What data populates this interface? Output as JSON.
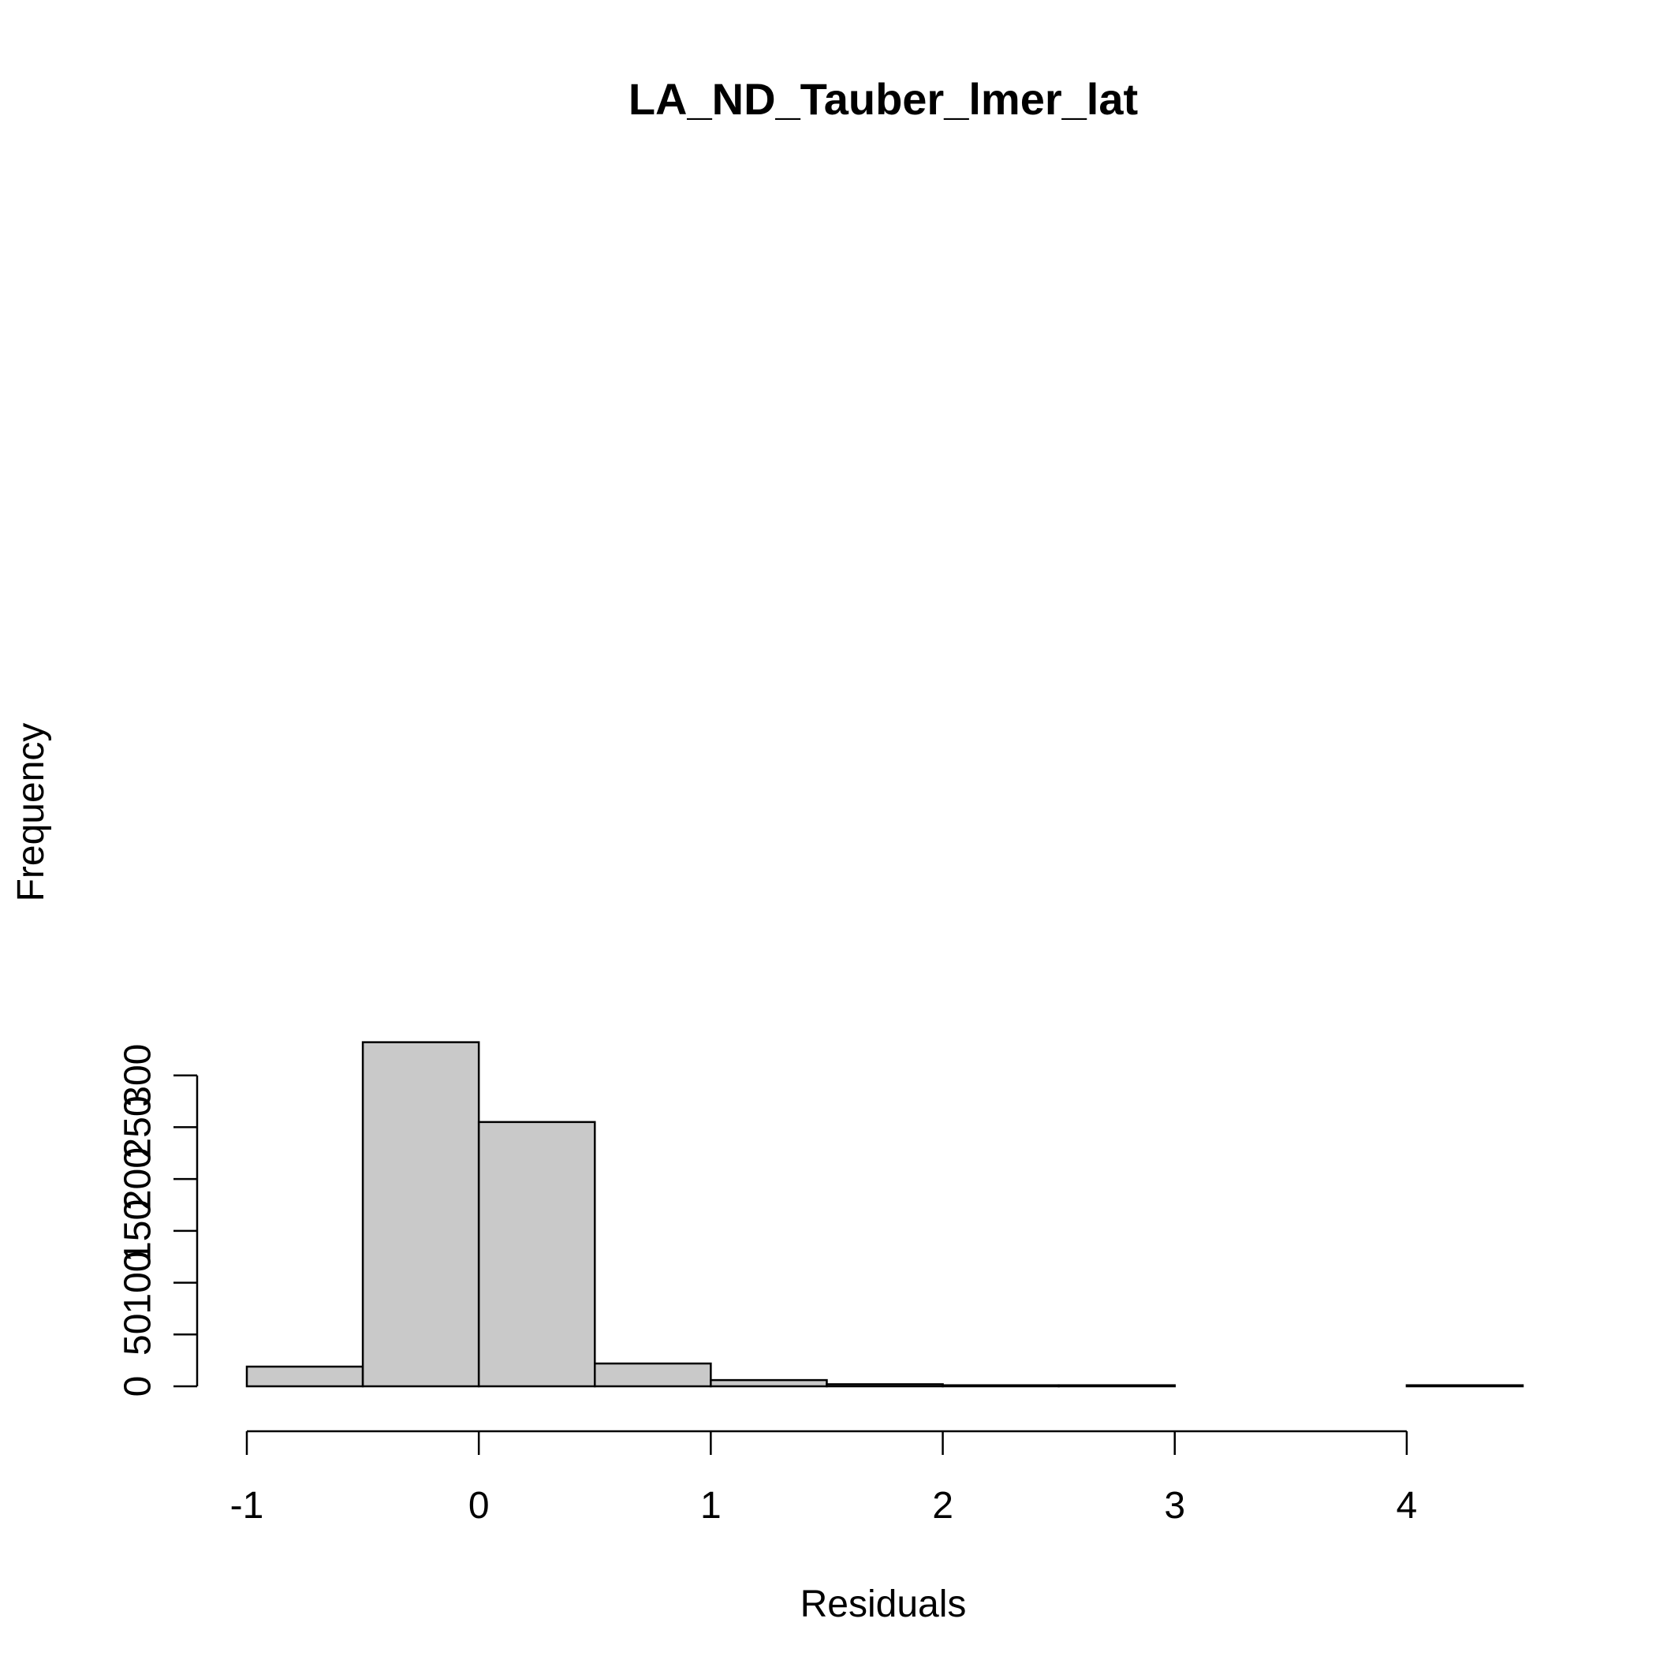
{
  "chart_data": {
    "type": "bar",
    "title": "LA_ND_Tauber_lmer_lat",
    "xlabel": "Residuals",
    "ylabel": "Frequency",
    "bins": [
      {
        "x0": -1.0,
        "x1": -0.5,
        "count": 19
      },
      {
        "x0": -0.5,
        "x1": 0.0,
        "count": 332
      },
      {
        "x0": 0.0,
        "x1": 0.5,
        "count": 255
      },
      {
        "x0": 0.5,
        "x1": 1.0,
        "count": 22
      },
      {
        "x0": 1.0,
        "x1": 1.5,
        "count": 6
      },
      {
        "x0": 1.5,
        "x1": 2.0,
        "count": 2
      },
      {
        "x0": 2.0,
        "x1": 2.5,
        "count": 1
      },
      {
        "x0": 2.5,
        "x1": 3.0,
        "count": 1
      },
      {
        "x0": 3.0,
        "x1": 3.5,
        "count": 0
      },
      {
        "x0": 3.5,
        "x1": 4.0,
        "count": 0
      },
      {
        "x0": 4.0,
        "x1": 4.5,
        "count": 1
      }
    ],
    "xticks": [
      "-1",
      "0",
      "1",
      "2",
      "3",
      "4"
    ],
    "yticks": [
      "0",
      "50",
      "100",
      "150",
      "200",
      "250",
      "300"
    ],
    "xlim": [
      -1,
      4.5
    ],
    "ylim": [
      0,
      332
    ],
    "grid": false,
    "legend": "none",
    "colors": {
      "bar_fill": "#c9c9c9",
      "bar_stroke": "#000000"
    }
  }
}
